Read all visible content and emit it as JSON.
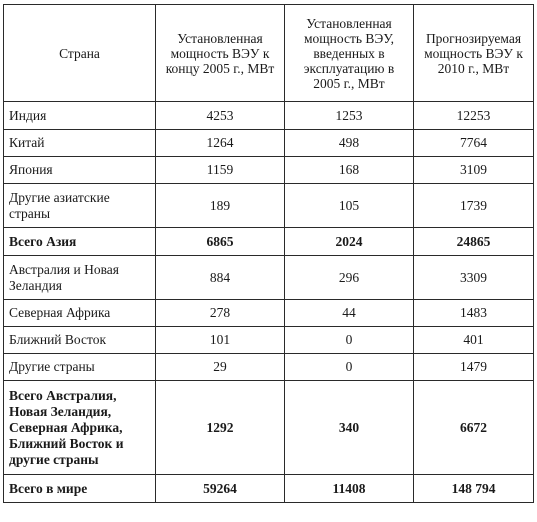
{
  "table": {
    "headers": [
      "Страна",
      "Установленная мощность ВЭУ к концу 2005 г., МВт",
      "Установленная мощность ВЭУ, введенных в эксплуатацию в 2005 г., МВт",
      "Прогнозируе­мая мощность ВЭУ к 2010 г., МВт"
    ],
    "rows": [
      {
        "country": "Индия",
        "v2005": "4253",
        "new2005": "1253",
        "f2010": "12253",
        "bold": false
      },
      {
        "country": "Китай",
        "v2005": "1264",
        "new2005": "498",
        "f2010": "7764",
        "bold": false
      },
      {
        "country": "Япония",
        "v2005": "1159",
        "new2005": "168",
        "f2010": "3109",
        "bold": false
      },
      {
        "country": "Другие азиатские страны",
        "v2005": "189",
        "new2005": "105",
        "f2010": "1739",
        "bold": false
      },
      {
        "country": "Всего Азия",
        "v2005": "6865",
        "new2005": "2024",
        "f2010": "24865",
        "bold": true
      },
      {
        "country": "Австралия и Новая Зеландия",
        "v2005": "884",
        "new2005": "296",
        "f2010": "3309",
        "bold": false
      },
      {
        "country": "Северная Африка",
        "v2005": "278",
        "new2005": "44",
        "f2010": "1483",
        "bold": false
      },
      {
        "country": "Ближний Восток",
        "v2005": "101",
        "new2005": "0",
        "f2010": "401",
        "bold": false
      },
      {
        "country": "Другие страны",
        "v2005": "29",
        "new2005": "0",
        "f2010": "1479",
        "bold": false
      },
      {
        "country": "Всего Австралия, Новая Зеландия, Северная Африка, Ближний Восток и другие страны",
        "v2005": "1292",
        "new2005": "340",
        "f2010": "6672",
        "bold": true
      },
      {
        "country": "Всего в мире",
        "v2005": "59264",
        "new2005": "11408",
        "f2010": "148 794",
        "bold": true
      }
    ]
  }
}
